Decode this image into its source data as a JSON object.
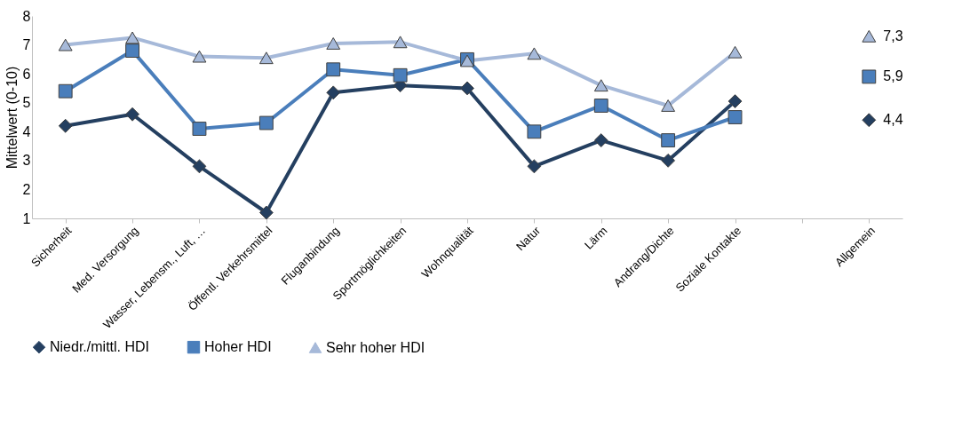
{
  "chart_data": {
    "type": "line",
    "ylabel": "Mittelwert (0-10)",
    "categories": [
      "Sicherheit",
      "Med. Versorgung",
      "Wasser, Lebensm., Luft, …",
      "Öffentl. Verkehrsmittel",
      "Fluganbindung",
      "Sportmöglichkeiten",
      "Wohnqualität",
      "Natur",
      "Lärm",
      "Andrang/Dichte",
      "Soziale Kontakte",
      null,
      "Allgemein"
    ],
    "series": [
      {
        "name": "Niedr./mittl. HDI",
        "color": "#243f60",
        "marker": "diamond",
        "values": [
          4.2,
          4.6,
          2.8,
          1.2,
          5.35,
          5.6,
          5.5,
          2.8,
          3.7,
          3.0,
          5.05,
          null,
          4.4
        ],
        "value_labels": [
          null,
          null,
          null,
          null,
          null,
          null,
          null,
          null,
          null,
          null,
          null,
          null,
          "4,4"
        ]
      },
      {
        "name": "Hoher HDI",
        "color": "#4a7ebb",
        "marker": "square",
        "values": [
          5.4,
          6.8,
          4.1,
          4.3,
          6.15,
          5.95,
          6.5,
          4.0,
          4.9,
          3.7,
          4.5,
          null,
          5.9
        ],
        "value_labels": [
          null,
          null,
          null,
          null,
          null,
          null,
          null,
          null,
          null,
          null,
          null,
          null,
          "5,9"
        ]
      },
      {
        "name": "Sehr hoher HDI",
        "color": "#a6b9d9",
        "marker": "triangle",
        "values": [
          7.0,
          7.25,
          6.6,
          6.55,
          7.05,
          7.1,
          6.45,
          6.7,
          5.6,
          4.9,
          6.75,
          null,
          7.3
        ],
        "value_labels": [
          null,
          null,
          null,
          null,
          null,
          null,
          null,
          null,
          null,
          null,
          null,
          null,
          "7,3"
        ]
      }
    ],
    "ylim": [
      1,
      8
    ],
    "yticks": [
      1,
      2,
      3,
      4,
      5,
      6,
      7,
      8
    ],
    "grid": false,
    "legend": "bottom",
    "line_style": "solid"
  }
}
